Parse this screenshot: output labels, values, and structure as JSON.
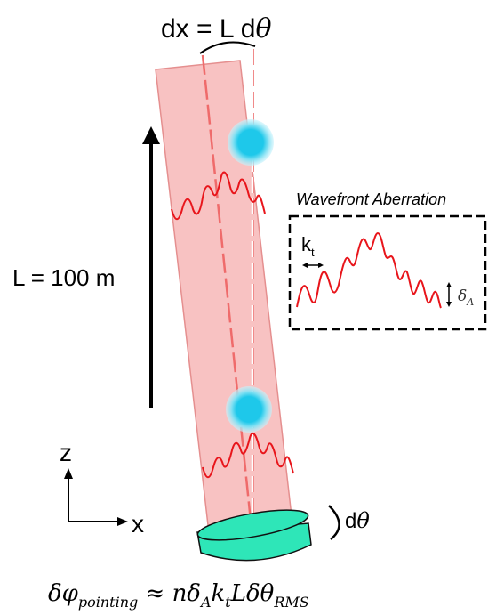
{
  "labels": {
    "dx_prefix": "dx = L d",
    "dx_theta": "θ",
    "length_label": "L = 100  m",
    "axis_z": "z",
    "axis_x": "x",
    "dtheta_prefix": "d",
    "dtheta_theta": "θ",
    "inset_title": "Wavefront Aberration",
    "inset_k": "k",
    "inset_k_sub": "t",
    "inset_delta": "δ",
    "inset_delta_sub": "A",
    "formula_lhs": "δφ",
    "formula_lhs_sub": "pointing",
    "formula_rhs_main": " ≈ nδ",
    "formula_rhs_sub1": "A",
    "formula_k": "k",
    "formula_k_sub": "t",
    "formula_tail": "Lδθ",
    "formula_tail_sub": "RMS"
  },
  "colors": {
    "beam_fill": "#f7b7b7",
    "beam_stroke": "#e58f8f",
    "wave": "#e8151b",
    "atom": "#1ec8ea",
    "mirror": "#2ee6b8"
  }
}
